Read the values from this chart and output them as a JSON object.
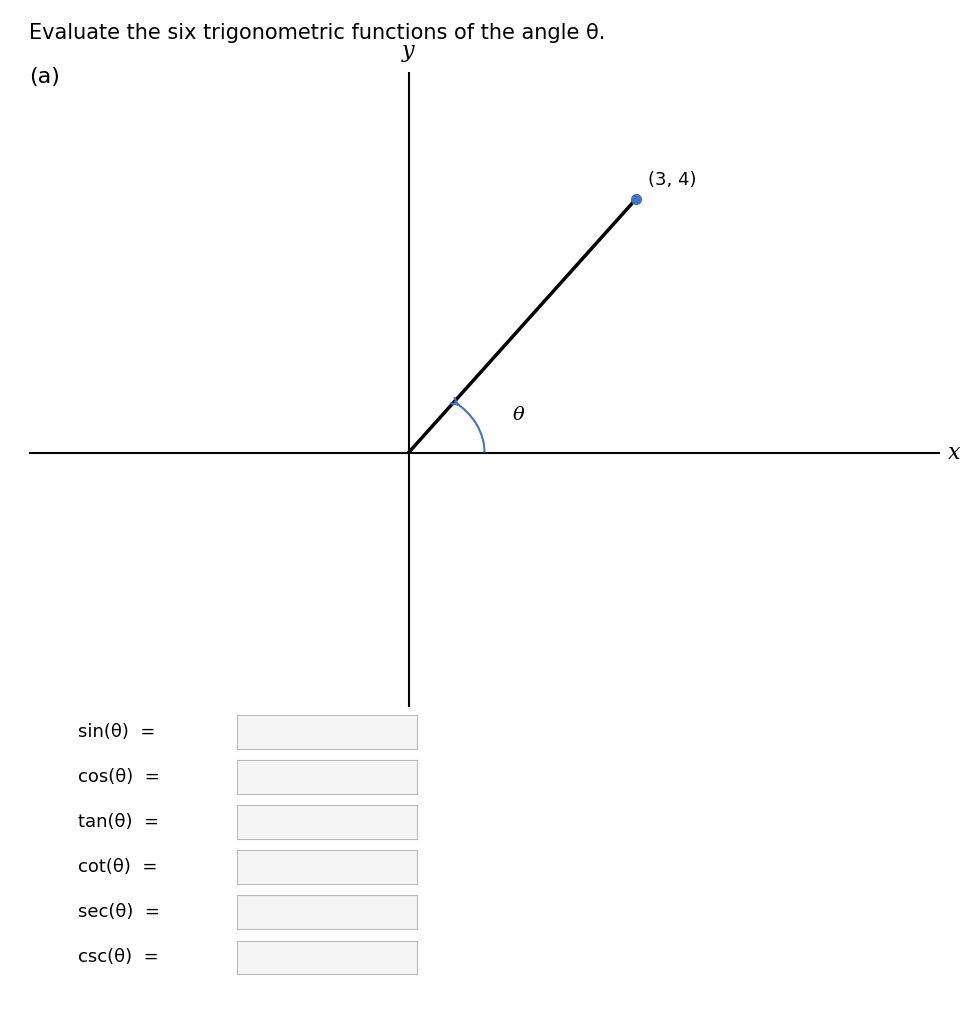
{
  "title": "Evaluate the six trigonometric functions of the angle θ.",
  "subtitle": "(a)",
  "point": [
    3,
    4
  ],
  "point_label": "(3, 4)",
  "point_color": "#4472C4",
  "line_color": "#000000",
  "arc_color": "#4472C4",
  "theta_label": "θ",
  "x_label": "x",
  "y_label": "y",
  "axis_xlim": [
    -5,
    7
  ],
  "axis_ylim": [
    -4,
    6
  ],
  "trig_labels": [
    "sin(θ)  =",
    "cos(θ)  =",
    "tan(θ)  =",
    "cot(θ)  =",
    "sec(θ)  =",
    "csc(θ)  ="
  ],
  "box_color": "#F5F5F5",
  "box_edge_color": "#BBBBBB",
  "background_color": "#FFFFFF",
  "title_fontsize": 15,
  "label_fontsize": 13,
  "trig_fontsize": 13
}
